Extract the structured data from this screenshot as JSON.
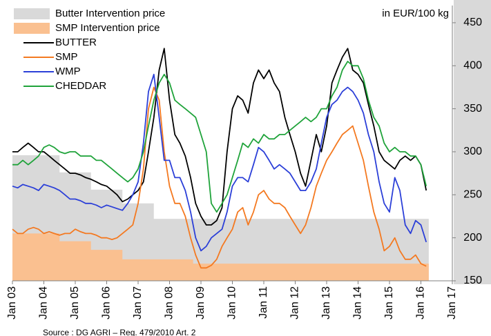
{
  "chart_data": {
    "type": "line",
    "unit_label": "in EUR/100 kg",
    "source": "Source : DG AGRI – Reg. 479/2010 Art. 2",
    "xlim": [
      2003,
      2017
    ],
    "xticks": [
      {
        "value": 2003,
        "label": "Jan 03"
      },
      {
        "value": 2004,
        "label": "Jan 04"
      },
      {
        "value": 2005,
        "label": "Jan 05"
      },
      {
        "value": 2006,
        "label": "Jan 06"
      },
      {
        "value": 2007,
        "label": "Jan 07"
      },
      {
        "value": 2008,
        "label": "Jan 08"
      },
      {
        "value": 2009,
        "label": "Jan 09"
      },
      {
        "value": 2010,
        "label": "Jan 10"
      },
      {
        "value": 2011,
        "label": "Jan 11"
      },
      {
        "value": 2012,
        "label": "Jan 12"
      },
      {
        "value": 2013,
        "label": "Jan 13"
      },
      {
        "value": 2014,
        "label": "Jan 14"
      },
      {
        "value": 2015,
        "label": "Jan 15"
      },
      {
        "value": 2016,
        "label": "Jan 16"
      },
      {
        "value": 2017,
        "label": "Jan 17"
      }
    ],
    "ylim": [
      150,
      470
    ],
    "yticks": [
      150,
      200,
      250,
      300,
      350,
      400,
      450
    ],
    "y_axis_side": "right",
    "legend": "top-left",
    "x": [
      2003,
      2003.17,
      2003.33,
      2003.5,
      2003.67,
      2003.83,
      2004,
      2004.17,
      2004.33,
      2004.5,
      2004.67,
      2004.83,
      2005,
      2005.17,
      2005.33,
      2005.5,
      2005.67,
      2005.83,
      2006,
      2006.17,
      2006.33,
      2006.5,
      2006.67,
      2006.83,
      2007,
      2007.17,
      2007.33,
      2007.5,
      2007.67,
      2007.83,
      2008,
      2008.17,
      2008.33,
      2008.5,
      2008.67,
      2008.83,
      2009,
      2009.17,
      2009.33,
      2009.5,
      2009.67,
      2009.83,
      2010,
      2010.17,
      2010.33,
      2010.5,
      2010.67,
      2010.83,
      2011,
      2011.17,
      2011.33,
      2011.5,
      2011.67,
      2011.83,
      2012,
      2012.17,
      2012.33,
      2012.5,
      2012.67,
      2012.83,
      2013,
      2013.17,
      2013.33,
      2013.5,
      2013.67,
      2013.83,
      2014,
      2014.17,
      2014.33,
      2014.5,
      2014.67,
      2014.83,
      2015,
      2015.17,
      2015.33,
      2015.5,
      2015.67,
      2015.83,
      2016,
      2016.17
    ],
    "series": [
      {
        "name": "Butter Intervention price",
        "style": "step-area",
        "color": "#d9d9d9",
        "x": [
          2003,
          2004.5,
          2005.5,
          2006.5,
          2007.5,
          2016.25
        ],
        "values": [
          296,
          276,
          256,
          240,
          222,
          222
        ]
      },
      {
        "name": "SMP Intervention price",
        "style": "step-area",
        "color": "#fac090",
        "x": [
          2003,
          2004.5,
          2005.5,
          2006.5,
          2008.75,
          2016.25
        ],
        "values": [
          205,
          196,
          186,
          175,
          170,
          170
        ]
      },
      {
        "name": "BUTTER",
        "style": "line",
        "color": "#000000",
        "values": [
          300,
          300,
          305,
          310,
          305,
          300,
          300,
          295,
          290,
          285,
          280,
          275,
          275,
          273,
          270,
          268,
          265,
          262,
          260,
          255,
          250,
          242,
          245,
          250,
          255,
          265,
          300,
          340,
          395,
          420,
          360,
          320,
          310,
          295,
          270,
          240,
          225,
          215,
          215,
          220,
          235,
          300,
          350,
          365,
          360,
          345,
          380,
          395,
          385,
          395,
          380,
          370,
          340,
          320,
          300,
          275,
          260,
          290,
          320,
          300,
          330,
          380,
          395,
          410,
          420,
          395,
          390,
          380,
          355,
          330,
          300,
          290,
          285,
          280,
          290,
          295,
          290,
          295,
          285,
          255
        ]
      },
      {
        "name": "SMP",
        "style": "line",
        "color": "#f47920",
        "values": [
          210,
          205,
          205,
          210,
          212,
          210,
          205,
          207,
          205,
          203,
          205,
          205,
          210,
          207,
          205,
          205,
          203,
          200,
          200,
          198,
          200,
          205,
          210,
          215,
          240,
          280,
          350,
          375,
          360,
          300,
          260,
          240,
          240,
          225,
          200,
          180,
          165,
          165,
          168,
          175,
          190,
          200,
          210,
          230,
          235,
          215,
          230,
          250,
          255,
          245,
          240,
          240,
          235,
          225,
          215,
          205,
          215,
          235,
          260,
          275,
          290,
          300,
          310,
          320,
          325,
          330,
          310,
          290,
          260,
          230,
          210,
          185,
          190,
          200,
          185,
          175,
          175,
          180,
          170,
          167
        ]
      },
      {
        "name": "WMP",
        "style": "line",
        "color": "#2b3fd8",
        "values": [
          260,
          258,
          262,
          260,
          258,
          255,
          262,
          260,
          258,
          255,
          250,
          245,
          245,
          243,
          240,
          240,
          238,
          235,
          238,
          236,
          234,
          232,
          240,
          250,
          265,
          310,
          370,
          390,
          340,
          290,
          290,
          270,
          270,
          255,
          230,
          200,
          185,
          190,
          200,
          205,
          210,
          230,
          260,
          270,
          270,
          265,
          285,
          305,
          300,
          290,
          280,
          285,
          280,
          275,
          265,
          255,
          255,
          265,
          280,
          310,
          340,
          355,
          360,
          370,
          375,
          370,
          360,
          345,
          320,
          300,
          265,
          240,
          230,
          270,
          255,
          215,
          205,
          220,
          215,
          195
        ]
      },
      {
        "name": "CHEDDAR",
        "style": "line",
        "color": "#1fa33a",
        "values": [
          285,
          285,
          290,
          285,
          290,
          295,
          305,
          308,
          305,
          300,
          298,
          300,
          300,
          295,
          295,
          295,
          290,
          290,
          285,
          280,
          275,
          270,
          265,
          270,
          280,
          300,
          330,
          360,
          380,
          390,
          380,
          360,
          355,
          350,
          345,
          340,
          320,
          300,
          240,
          230,
          240,
          250,
          270,
          290,
          310,
          305,
          315,
          310,
          320,
          315,
          315,
          320,
          320,
          325,
          330,
          335,
          340,
          335,
          340,
          350,
          350,
          365,
          375,
          395,
          405,
          400,
          400,
          385,
          360,
          340,
          330,
          310,
          300,
          305,
          300,
          300,
          295,
          295,
          285,
          260
        ]
      }
    ]
  }
}
